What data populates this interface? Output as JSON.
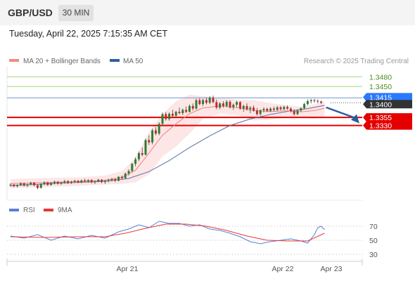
{
  "header": {
    "pair": "GBP/USD",
    "timeframe": "30 MIN"
  },
  "datetime": "Tuesday, April 22, 2025 7:15:35 AM CET",
  "legend": {
    "ma20": {
      "label": "MA 20 + Bollinger Bands",
      "color": "#f28b82"
    },
    "ma50": {
      "label": "MA 50",
      "color": "#2f5f9e"
    }
  },
  "credit": "Research © 2025 Trading Central",
  "colors": {
    "up": "#2e7d32",
    "down": "#c62828",
    "band": "#fde2e2",
    "ma20": "#f08080",
    "ma50": "#5b6ea6",
    "rsi": "#5b7fd6",
    "rsi_ma": "#e53935",
    "resistance": "#7cb342",
    "pivot": "#2979ff",
    "support": "#e50000",
    "last": "#333333"
  },
  "chart_data": [
    {
      "type": "candlestick",
      "ylim": [
        1.31,
        1.35
      ],
      "levels": [
        {
          "value": 1.348,
          "label": "1.3480",
          "kind": "resistance"
        },
        {
          "value": 1.345,
          "label": "1.3450",
          "kind": "resistance"
        },
        {
          "value": 1.3415,
          "label": "1.3415",
          "kind": "pivot"
        },
        {
          "value": 1.34,
          "label": "1.3400",
          "kind": "last"
        },
        {
          "value": 1.3355,
          "label": "1.3355",
          "kind": "support"
        },
        {
          "value": 1.333,
          "label": "1.3330",
          "kind": "support"
        }
      ],
      "xlabels": [
        "Apr 21",
        "Apr 22",
        "Apr 23"
      ],
      "ma20": [
        [
          0,
          1.3151
        ],
        [
          10,
          1.3154
        ],
        [
          20,
          1.3157
        ],
        [
          28,
          1.3162
        ],
        [
          33,
          1.317
        ],
        [
          37,
          1.3192
        ],
        [
          41,
          1.3245
        ],
        [
          45,
          1.33
        ],
        [
          49,
          1.3335
        ],
        [
          53,
          1.3366
        ],
        [
          57,
          1.3384
        ],
        [
          62,
          1.339
        ],
        [
          67,
          1.3385
        ],
        [
          72,
          1.3376
        ],
        [
          77,
          1.3373
        ],
        [
          82,
          1.3375
        ],
        [
          86,
          1.3372
        ],
        [
          90,
          1.3376
        ],
        [
          93,
          1.3383
        ]
      ],
      "ma50": [
        [
          0,
          1.3145
        ],
        [
          10,
          1.315
        ],
        [
          20,
          1.3155
        ],
        [
          28,
          1.3158
        ],
        [
          35,
          1.3167
        ],
        [
          41,
          1.3188
        ],
        [
          47,
          1.3222
        ],
        [
          53,
          1.3262
        ],
        [
          59,
          1.3298
        ],
        [
          65,
          1.333
        ],
        [
          71,
          1.335
        ],
        [
          77,
          1.3364
        ],
        [
          83,
          1.3375
        ],
        [
          88,
          1.3382
        ],
        [
          93,
          1.3392
        ]
      ],
      "bb_upper": [
        [
          0,
          1.3165
        ],
        [
          10,
          1.3168
        ],
        [
          20,
          1.317
        ],
        [
          28,
          1.3176
        ],
        [
          33,
          1.319
        ],
        [
          37,
          1.323
        ],
        [
          41,
          1.331
        ],
        [
          45,
          1.3365
        ],
        [
          49,
          1.3405
        ],
        [
          53,
          1.3425
        ],
        [
          57,
          1.342
        ],
        [
          62,
          1.3415
        ],
        [
          67,
          1.341
        ],
        [
          72,
          1.3408
        ],
        [
          77,
          1.3399
        ],
        [
          82,
          1.3392
        ],
        [
          86,
          1.3388
        ],
        [
          90,
          1.3395
        ],
        [
          93,
          1.3402
        ]
      ],
      "bb_lower": [
        [
          0,
          1.3137
        ],
        [
          10,
          1.314
        ],
        [
          20,
          1.3144
        ],
        [
          28,
          1.3148
        ],
        [
          33,
          1.315
        ],
        [
          37,
          1.3155
        ],
        [
          41,
          1.318
        ],
        [
          45,
          1.3235
        ],
        [
          49,
          1.3265
        ],
        [
          53,
          1.3305
        ],
        [
          57,
          1.335
        ],
        [
          62,
          1.3366
        ],
        [
          67,
          1.3362
        ],
        [
          72,
          1.3345
        ],
        [
          77,
          1.3348
        ],
        [
          82,
          1.3356
        ],
        [
          86,
          1.3355
        ],
        [
          90,
          1.335
        ],
        [
          93,
          1.3358
        ]
      ],
      "candles": [
        [
          1.3145,
          1.3152,
          1.3141,
          1.3148
        ],
        [
          1.3148,
          1.315,
          1.314,
          1.3143
        ],
        [
          1.3143,
          1.3149,
          1.3139,
          1.3147
        ],
        [
          1.3147,
          1.3155,
          1.3144,
          1.3152
        ],
        [
          1.3152,
          1.3154,
          1.3142,
          1.3145
        ],
        [
          1.3145,
          1.3151,
          1.314,
          1.3149
        ],
        [
          1.3149,
          1.3157,
          1.3146,
          1.3154
        ],
        [
          1.3154,
          1.3156,
          1.3143,
          1.3146
        ],
        [
          1.3146,
          1.315,
          1.3134,
          1.3138
        ],
        [
          1.3138,
          1.3152,
          1.3136,
          1.315
        ],
        [
          1.315,
          1.3158,
          1.3146,
          1.3155
        ],
        [
          1.3155,
          1.3157,
          1.3144,
          1.3147
        ],
        [
          1.3147,
          1.3156,
          1.3145,
          1.3153
        ],
        [
          1.3153,
          1.316,
          1.3149,
          1.3157
        ],
        [
          1.3157,
          1.3159,
          1.3148,
          1.3151
        ],
        [
          1.3151,
          1.3157,
          1.3147,
          1.3155
        ],
        [
          1.3155,
          1.3162,
          1.3151,
          1.3159
        ],
        [
          1.3159,
          1.3161,
          1.315,
          1.3153
        ],
        [
          1.3153,
          1.316,
          1.315,
          1.3157
        ],
        [
          1.3157,
          1.3163,
          1.3153,
          1.316
        ],
        [
          1.316,
          1.3162,
          1.3152,
          1.3155
        ],
        [
          1.3155,
          1.3163,
          1.3152,
          1.3161
        ],
        [
          1.3161,
          1.3166,
          1.3155,
          1.3158
        ],
        [
          1.3158,
          1.3164,
          1.3154,
          1.3162
        ],
        [
          1.3162,
          1.3165,
          1.3152,
          1.3155
        ],
        [
          1.3155,
          1.3161,
          1.315,
          1.3158
        ],
        [
          1.3158,
          1.3166,
          1.3155,
          1.3163
        ],
        [
          1.3163,
          1.3165,
          1.3152,
          1.3156
        ],
        [
          1.3156,
          1.3162,
          1.315,
          1.316
        ],
        [
          1.316,
          1.3166,
          1.3155,
          1.3162
        ],
        [
          1.3162,
          1.3168,
          1.3158,
          1.3165
        ],
        [
          1.3165,
          1.3167,
          1.3156,
          1.316
        ],
        [
          1.316,
          1.3174,
          1.3158,
          1.3172
        ],
        [
          1.3172,
          1.3176,
          1.3164,
          1.3168
        ],
        [
          1.3168,
          1.3185,
          1.3166,
          1.3182
        ],
        [
          1.3182,
          1.3195,
          1.3176,
          1.319
        ],
        [
          1.319,
          1.3215,
          1.3186,
          1.3212
        ],
        [
          1.3212,
          1.3232,
          1.3205,
          1.3226
        ],
        [
          1.3226,
          1.325,
          1.322,
          1.3245
        ],
        [
          1.3245,
          1.3262,
          1.3235,
          1.324
        ],
        [
          1.324,
          1.329,
          1.3238,
          1.3285
        ],
        [
          1.3285,
          1.33,
          1.327,
          1.3278
        ],
        [
          1.3278,
          1.332,
          1.3272,
          1.3315
        ],
        [
          1.3315,
          1.3325,
          1.33,
          1.3305
        ],
        [
          1.3305,
          1.334,
          1.33,
          1.3335
        ],
        [
          1.3335,
          1.337,
          1.3328,
          1.3365
        ],
        [
          1.3365,
          1.3372,
          1.3345,
          1.335
        ],
        [
          1.335,
          1.337,
          1.3345,
          1.3366
        ],
        [
          1.3366,
          1.3378,
          1.3356,
          1.336
        ],
        [
          1.336,
          1.3375,
          1.3355,
          1.3372
        ],
        [
          1.3372,
          1.3385,
          1.3364,
          1.3368
        ],
        [
          1.3368,
          1.3382,
          1.3362,
          1.3378
        ],
        [
          1.3378,
          1.3388,
          1.3368,
          1.3372
        ],
        [
          1.3372,
          1.3395,
          1.337,
          1.339
        ],
        [
          1.339,
          1.3398,
          1.3376,
          1.3382
        ],
        [
          1.3382,
          1.3412,
          1.3378,
          1.3408
        ],
        [
          1.3408,
          1.3414,
          1.3392,
          1.3396
        ],
        [
          1.3396,
          1.3412,
          1.339,
          1.3408
        ],
        [
          1.3408,
          1.3415,
          1.3395,
          1.34
        ],
        [
          1.34,
          1.342,
          1.3396,
          1.3415
        ],
        [
          1.3415,
          1.3422,
          1.3398,
          1.3402
        ],
        [
          1.3402,
          1.341,
          1.338,
          1.3385
        ],
        [
          1.3385,
          1.3402,
          1.338,
          1.3398
        ],
        [
          1.3398,
          1.3405,
          1.3385,
          1.339
        ],
        [
          1.339,
          1.3408,
          1.3386,
          1.3403
        ],
        [
          1.3403,
          1.3408,
          1.3382,
          1.3386
        ],
        [
          1.3386,
          1.3398,
          1.3378,
          1.3394
        ],
        [
          1.3394,
          1.3406,
          1.3386,
          1.3402
        ],
        [
          1.3402,
          1.3405,
          1.3378,
          1.3382
        ],
        [
          1.3382,
          1.3394,
          1.3372,
          1.339
        ],
        [
          1.339,
          1.3398,
          1.3376,
          1.338
        ],
        [
          1.338,
          1.339,
          1.3368,
          1.3385
        ],
        [
          1.3385,
          1.3392,
          1.3372,
          1.3376
        ],
        [
          1.3376,
          1.3384,
          1.336,
          1.3365
        ],
        [
          1.3365,
          1.338,
          1.336,
          1.3377
        ],
        [
          1.3377,
          1.3386,
          1.337,
          1.3381
        ],
        [
          1.3381,
          1.3385,
          1.3371,
          1.3375
        ],
        [
          1.3375,
          1.3386,
          1.3371,
          1.3382
        ],
        [
          1.3382,
          1.3388,
          1.3374,
          1.3378
        ],
        [
          1.3378,
          1.339,
          1.3374,
          1.3386
        ],
        [
          1.3386,
          1.339,
          1.3376,
          1.338
        ],
        [
          1.338,
          1.3391,
          1.3377,
          1.3387
        ],
        [
          1.3387,
          1.3392,
          1.3378,
          1.3382
        ],
        [
          1.3382,
          1.3386,
          1.337,
          1.3374
        ],
        [
          1.3374,
          1.338,
          1.336,
          1.3365
        ],
        [
          1.3365,
          1.338,
          1.3362,
          1.3376
        ],
        [
          1.3376,
          1.3386,
          1.3372,
          1.3383
        ],
        [
          1.3383,
          1.34,
          1.338,
          1.3396
        ],
        [
          1.3396,
          1.341,
          1.3392,
          1.3405
        ],
        [
          1.3405,
          1.3412,
          1.3398,
          1.3408
        ],
        [
          1.3408,
          1.3412,
          1.34,
          1.3406
        ],
        [
          1.3406,
          1.341,
          1.3398,
          1.3404
        ],
        [
          1.3404,
          1.3406,
          1.3396,
          1.34
        ]
      ]
    },
    {
      "type": "line",
      "title": "RSI",
      "ylim": [
        20,
        80
      ],
      "yticks": [
        70,
        50,
        30
      ],
      "series": [
        {
          "name": "RSI",
          "points": [
            [
              0,
              56
            ],
            [
              4,
              53
            ],
            [
              8,
              58
            ],
            [
              12,
              50
            ],
            [
              16,
              56
            ],
            [
              20,
              52
            ],
            [
              24,
              57
            ],
            [
              28,
              53
            ],
            [
              32,
              62
            ],
            [
              35,
              66
            ],
            [
              38,
              72
            ],
            [
              41,
              68
            ],
            [
              44,
              77
            ],
            [
              47,
              74
            ],
            [
              50,
              74
            ],
            [
              53,
              70
            ],
            [
              56,
              72
            ],
            [
              59,
              66
            ],
            [
              62,
              64
            ],
            [
              65,
              60
            ],
            [
              68,
              55
            ],
            [
              71,
              48
            ],
            [
              74,
              45
            ],
            [
              77,
              48
            ],
            [
              80,
              50
            ],
            [
              83,
              52
            ],
            [
              86,
              49
            ],
            [
              88,
              46
            ],
            [
              90,
              58
            ],
            [
              91,
              68
            ],
            [
              92,
              70
            ],
            [
              93,
              65
            ]
          ]
        },
        {
          "name": "9MA",
          "points": [
            [
              0,
              55
            ],
            [
              10,
              54
            ],
            [
              20,
              55
            ],
            [
              28,
              55
            ],
            [
              34,
              60
            ],
            [
              40,
              67
            ],
            [
              46,
              73
            ],
            [
              52,
              73
            ],
            [
              58,
              70
            ],
            [
              64,
              64
            ],
            [
              70,
              56
            ],
            [
              76,
              50
            ],
            [
              82,
              49
            ],
            [
              88,
              49
            ],
            [
              93,
              60
            ]
          ]
        }
      ]
    }
  ]
}
